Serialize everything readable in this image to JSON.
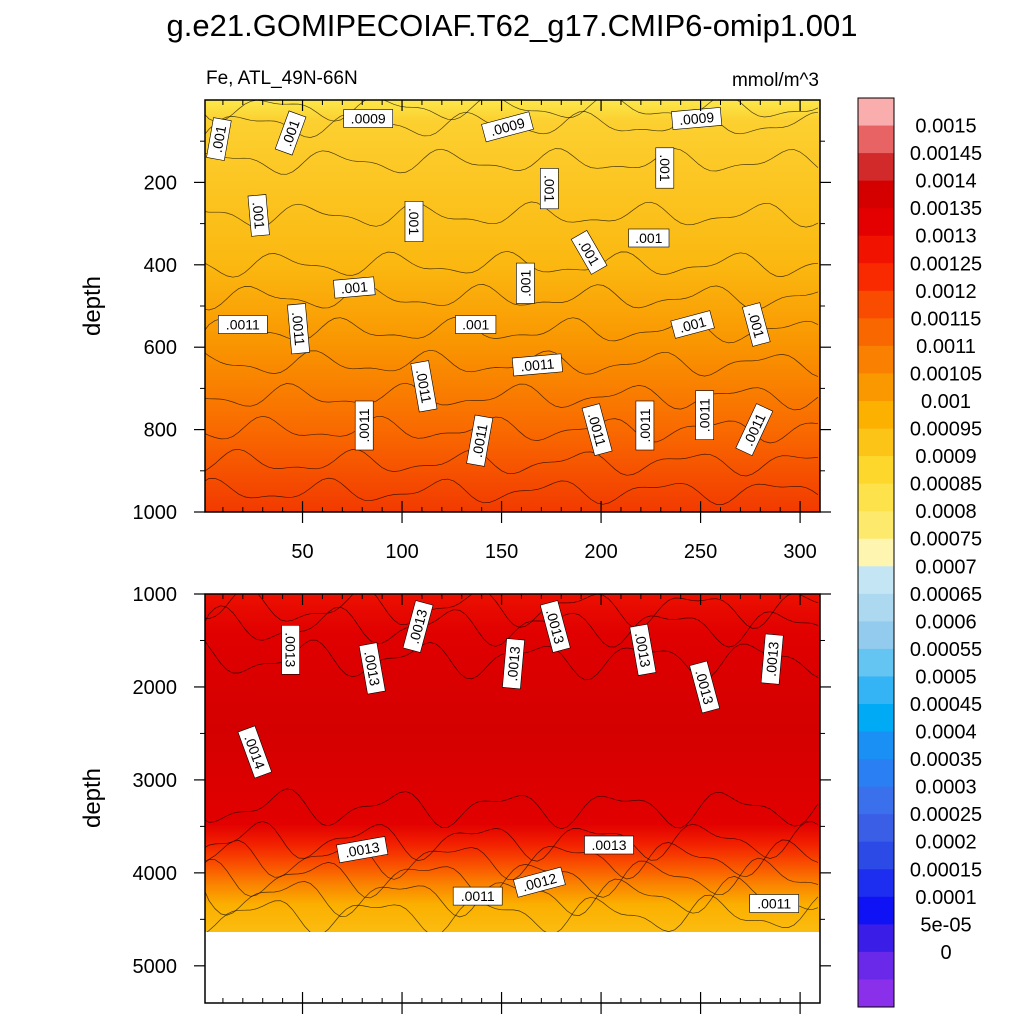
{
  "chart_data": {
    "type": "heatmap",
    "title": "g.e21.GOMIPECOIAF.T62_g17.CMIP6-omip1.001",
    "variable_label": "Fe, ATL_49N-66N",
    "units": "mmol/m^3",
    "x_ticks": [
      "50",
      "100",
      "150",
      "200",
      "250",
      "300"
    ],
    "xlim": [
      1,
      310
    ],
    "panels": [
      {
        "name": "upper",
        "ylabel": "depth",
        "ylim": [
          1000,
          0
        ],
        "y_ticks": [
          "200",
          "400",
          "600",
          "800",
          "1000"
        ],
        "top_value": 0.00083,
        "bottom_value": 0.00125,
        "contour_labels": [
          {
            "text": ".001",
            "x": 8,
            "y": 95,
            "angle": -80
          },
          {
            "text": ".001",
            "x": 44,
            "y": 80,
            "angle": -70
          },
          {
            "text": ".0009",
            "x": 83,
            "y": 45,
            "angle": 0
          },
          {
            "text": ".0009",
            "x": 153,
            "y": 65,
            "angle": -15
          },
          {
            "text": ".0009",
            "x": 248,
            "y": 45,
            "angle": -5
          },
          {
            "text": ".001",
            "x": 232,
            "y": 165,
            "angle": 90
          },
          {
            "text": ".001",
            "x": 174,
            "y": 215,
            "angle": 90
          },
          {
            "text": ".001",
            "x": 28,
            "y": 280,
            "angle": 85
          },
          {
            "text": ".001",
            "x": 106,
            "y": 295,
            "angle": 90
          },
          {
            "text": ".001",
            "x": 194,
            "y": 370,
            "angle": 60
          },
          {
            "text": ".001",
            "x": 224,
            "y": 335,
            "angle": 0
          },
          {
            "text": ".001",
            "x": 162,
            "y": 445,
            "angle": -90
          },
          {
            "text": ".001",
            "x": 76,
            "y": 455,
            "angle": -5
          },
          {
            "text": ".0011",
            "x": 20,
            "y": 545,
            "angle": 0
          },
          {
            "text": ".0011",
            "x": 48,
            "y": 555,
            "angle": 85
          },
          {
            "text": ".001",
            "x": 137,
            "y": 545,
            "angle": 0
          },
          {
            "text": ".001",
            "x": 246,
            "y": 545,
            "angle": -15
          },
          {
            "text": ".001",
            "x": 278,
            "y": 545,
            "angle": 75
          },
          {
            "text": ".0011",
            "x": 168,
            "y": 643,
            "angle": -5
          },
          {
            "text": ".0011",
            "x": 111,
            "y": 695,
            "angle": 80
          },
          {
            "text": ".0011",
            "x": 81,
            "y": 790,
            "angle": -90
          },
          {
            "text": ".0011",
            "x": 139,
            "y": 827,
            "angle": -80
          },
          {
            "text": ".0011",
            "x": 198,
            "y": 800,
            "angle": 75
          },
          {
            "text": ".0011",
            "x": 222,
            "y": 790,
            "angle": -90
          },
          {
            "text": ".0011",
            "x": 252,
            "y": 765,
            "angle": -90
          },
          {
            "text": ".0011",
            "x": 277,
            "y": 800,
            "angle": -65
          }
        ]
      },
      {
        "name": "lower",
        "ylabel": "depth",
        "ylim": [
          1000,
          5400
        ],
        "y_ticks": [
          "1000",
          "2000",
          "3000",
          "4000",
          "5000"
        ],
        "data_bottom_depth": 4620,
        "contour_labels": [
          {
            "text": ".0013",
            "x": 44,
            "y": 1600,
            "angle": 90
          },
          {
            "text": ".0013",
            "x": 85,
            "y": 1800,
            "angle": 80
          },
          {
            "text": ".0013",
            "x": 108,
            "y": 1350,
            "angle": -75
          },
          {
            "text": ".0013",
            "x": 156,
            "y": 1750,
            "angle": -85
          },
          {
            "text": ".0013",
            "x": 177,
            "y": 1350,
            "angle": 75
          },
          {
            "text": ".0013",
            "x": 221,
            "y": 1600,
            "angle": 80
          },
          {
            "text": ".0013",
            "x": 252,
            "y": 2000,
            "angle": 75
          },
          {
            "text": ".0013",
            "x": 286,
            "y": 1700,
            "angle": -85
          },
          {
            "text": ".0014",
            "x": 26,
            "y": 2700,
            "angle": 70
          },
          {
            "text": ".0013",
            "x": 80,
            "y": 3750,
            "angle": -10
          },
          {
            "text": ".0013",
            "x": 204,
            "y": 3700,
            "angle": 0
          },
          {
            "text": ".0011",
            "x": 138,
            "y": 4250,
            "angle": 0
          },
          {
            "text": ".0012",
            "x": 169,
            "y": 4100,
            "angle": -15
          },
          {
            "text": ".0011",
            "x": 287,
            "y": 4330,
            "angle": 0
          }
        ]
      }
    ],
    "colorbar": {
      "levels": [
        "0.0015",
        "0.00145",
        "0.0014",
        "0.00135",
        "0.0013",
        "0.00125",
        "0.0012",
        "0.00115",
        "0.0011",
        "0.00105",
        "0.001",
        "0.00095",
        "0.0009",
        "0.00085",
        "0.0008",
        "0.00075",
        "0.0007",
        "0.00065",
        "0.0006",
        "0.00055",
        "0.0005",
        "0.00045",
        "0.0004",
        "0.00035",
        "0.0003",
        "0.00025",
        "0.0002",
        "0.00015",
        "0.0001",
        "5e-05",
        "0"
      ],
      "colors": [
        "#f9adad",
        "#e86464",
        "#d22a2a",
        "#d40000",
        "#e40000",
        "#f21200",
        "#fa2a00",
        "#fa4c00",
        "#f96800",
        "#f98000",
        "#fa9800",
        "#fcb000",
        "#fcc416",
        "#fdd72c",
        "#fde24c",
        "#fdea6c",
        "#fdf5b0",
        "#c4e6f4",
        "#acd8f0",
        "#92cbee",
        "#64c4f2",
        "#34b4f4",
        "#00aaf5",
        "#1b90f4",
        "#2a80f2",
        "#3a70ec",
        "#3a5ee6",
        "#2c4ae6",
        "#1e2ef0",
        "#0e12f5",
        "#3a1ee8",
        "#6a28e8",
        "#8a30ea"
      ]
    },
    "colors": {
      "background": "#ffffff",
      "axis": "#000000",
      "missing_region": "#ffffff"
    }
  }
}
